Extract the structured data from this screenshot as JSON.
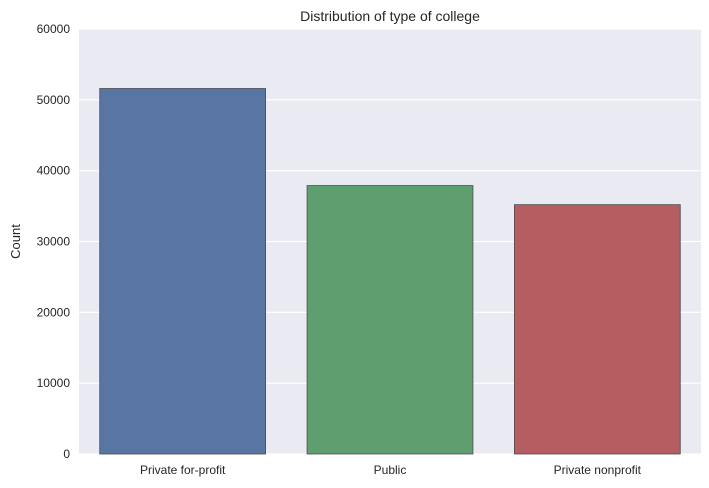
{
  "chart_data": {
    "type": "bar",
    "title": "Distribution of type of college",
    "xlabel": "",
    "ylabel": "Count",
    "categories": [
      "Private for-profit",
      "Public",
      "Private nonprofit"
    ],
    "values": [
      51600,
      37900,
      35200
    ],
    "colors": [
      "#5875a4",
      "#5f9e6e",
      "#b55d60"
    ],
    "ylim": [
      0,
      60000
    ],
    "yticks": [
      0,
      10000,
      20000,
      30000,
      40000,
      50000,
      60000
    ],
    "grid": true,
    "background": "#eaeaf2",
    "gridline_color": "#ffffff"
  }
}
